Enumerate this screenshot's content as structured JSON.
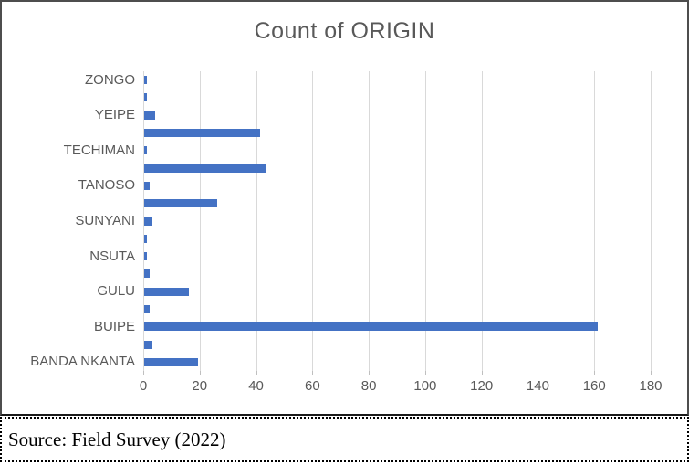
{
  "chart_data": {
    "type": "bar",
    "orientation": "horizontal",
    "title": "Count of ORIGIN",
    "values": [
      1,
      1,
      4,
      41,
      1,
      43,
      2,
      26,
      3,
      1,
      1,
      2,
      16,
      2,
      161,
      3,
      19
    ],
    "category_labels_shown": [
      "ZONGO",
      "YEIPE",
      "TECHIMAN",
      "TANOSO",
      "SUNYANI",
      "NSUTA",
      "GULU",
      "BUIPE",
      "BANDA NKANTA"
    ],
    "label_every_nth_bar": 2,
    "x_ticks": [
      0,
      20,
      40,
      60,
      80,
      100,
      120,
      140,
      160,
      180
    ],
    "xlim": [
      0,
      180
    ],
    "legend": "none",
    "grid": "vertical",
    "bar_color": "#4472C4",
    "gridline_color": "#D9D9D9",
    "text_color": "#595959"
  },
  "source": {
    "text": "Source: Field Survey (2022)"
  }
}
